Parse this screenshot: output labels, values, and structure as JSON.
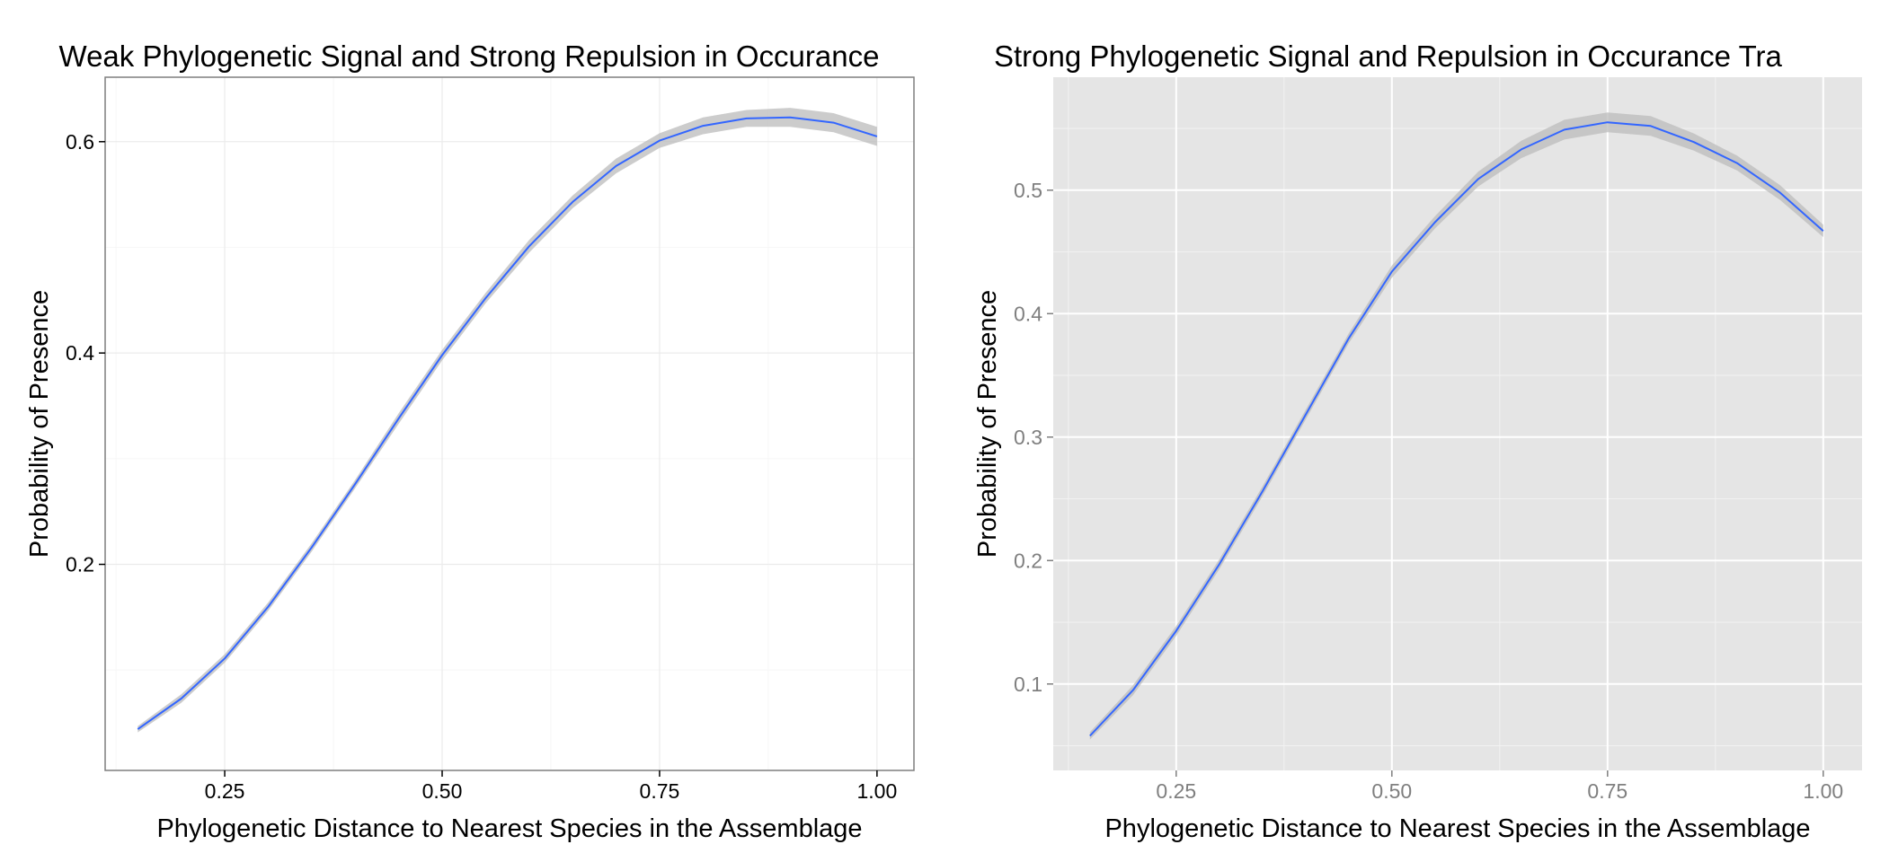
{
  "chart_data": [
    {
      "type": "line",
      "theme": "bw",
      "title": "Weak Phylogenetic Signal and Strong Repulsion in Occurance",
      "xlabel": "Phylogenetic Distance to Nearest Species in the Assemblage",
      "ylabel": "Probability of Presence",
      "xlim": [
        0.1125,
        1.0425
      ],
      "ylim": [
        0.005,
        0.661
      ],
      "xticks": [
        0.25,
        0.5,
        0.75,
        1.0
      ],
      "xtick_labels": [
        "0.25",
        "0.50",
        "0.75",
        "1.00"
      ],
      "yticks": [
        0.2,
        0.4,
        0.6
      ],
      "ytick_labels": [
        "0.2",
        "0.4",
        "0.6"
      ],
      "grid": true,
      "line_color": "#3366FF",
      "band_color": "#BBBBBB",
      "series": [
        {
          "x": [
            0.15,
            0.2,
            0.25,
            0.3,
            0.35,
            0.4,
            0.45,
            0.5,
            0.55,
            0.6,
            0.65,
            0.7,
            0.75,
            0.8,
            0.85,
            0.9,
            0.95,
            1.0
          ],
          "y": [
            0.044,
            0.073,
            0.111,
            0.16,
            0.216,
            0.276,
            0.338,
            0.398,
            0.452,
            0.501,
            0.543,
            0.577,
            0.601,
            0.615,
            0.622,
            0.623,
            0.618,
            0.605
          ],
          "band": [
            0.003,
            0.004,
            0.004,
            0.004,
            0.004,
            0.004,
            0.005,
            0.005,
            0.005,
            0.006,
            0.006,
            0.007,
            0.007,
            0.008,
            0.008,
            0.009,
            0.009,
            0.009
          ]
        }
      ]
    },
    {
      "type": "line",
      "theme": "grey",
      "title": "Strong Phylogenetic Signal and Repulsion in Occurance Tra",
      "xlabel": "Phylogenetic Distance to Nearest Species in the Assemblage",
      "ylabel": "Probability of Presence",
      "xlim": [
        0.1075,
        1.045
      ],
      "ylim": [
        0.03,
        0.5915
      ],
      "xticks": [
        0.25,
        0.5,
        0.75,
        1.0
      ],
      "xtick_labels": [
        "0.25",
        "0.50",
        "0.75",
        "1.00"
      ],
      "yticks": [
        0.1,
        0.2,
        0.3,
        0.4,
        0.5
      ],
      "ytick_labels": [
        "0.1",
        "0.2",
        "0.3",
        "0.4",
        "0.5"
      ],
      "grid": true,
      "line_color": "#3366FF",
      "band_color": "#BBBBBB",
      "series": [
        {
          "x": [
            0.15,
            0.2,
            0.25,
            0.3,
            0.35,
            0.4,
            0.45,
            0.5,
            0.55,
            0.6,
            0.65,
            0.7,
            0.75,
            0.8,
            0.85,
            0.9,
            0.95,
            1.0
          ],
          "y": [
            0.058,
            0.095,
            0.143,
            0.197,
            0.256,
            0.318,
            0.38,
            0.434,
            0.474,
            0.509,
            0.533,
            0.549,
            0.555,
            0.552,
            0.539,
            0.522,
            0.498,
            0.467
          ],
          "band": [
            0.003,
            0.004,
            0.004,
            0.004,
            0.004,
            0.004,
            0.004,
            0.005,
            0.005,
            0.006,
            0.007,
            0.008,
            0.008,
            0.008,
            0.007,
            0.006,
            0.006,
            0.005
          ]
        }
      ]
    }
  ]
}
